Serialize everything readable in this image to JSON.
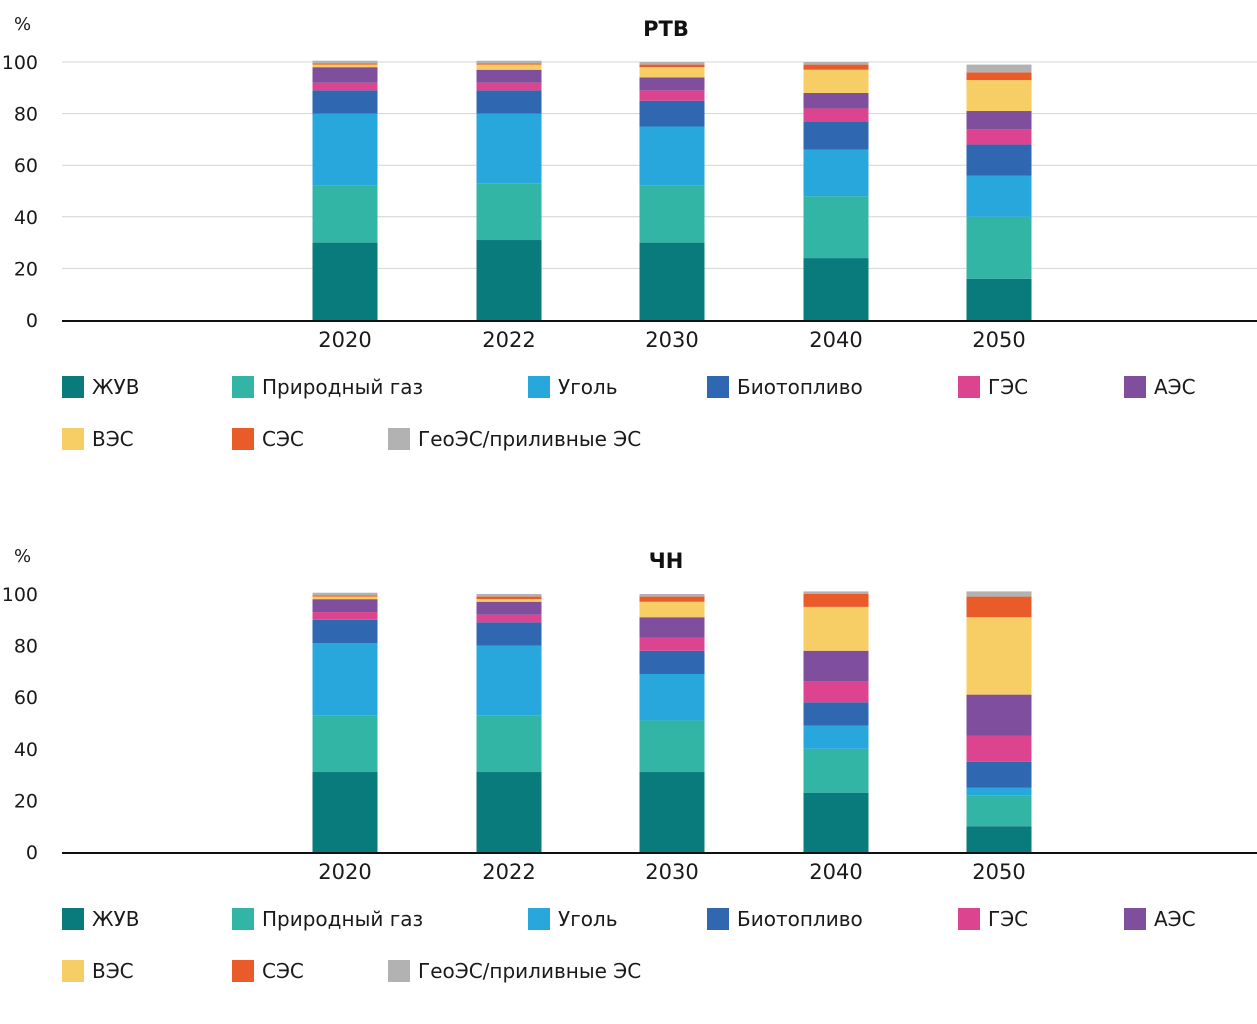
{
  "colors": {
    "ЖУВ": "#0a7b7c",
    "Природный газ": "#33b5a6",
    "Уголь": "#27a7db",
    "Биотопливо": "#2f68b1",
    "ГЭС": "#dd4490",
    "АЭС": "#7f4f9e",
    "ВЭС": "#f7cd66",
    "СЭС": "#ea5b2a",
    "ГеоЭС/приливные ЭС": "#b2b2b2"
  },
  "legend": [
    "ЖУВ",
    "Природный газ",
    "Уголь",
    "Биотопливо",
    "ГЭС",
    "АЭС",
    "ВЭС",
    "СЭС",
    "ГеоЭС/приливные ЭС"
  ],
  "chart_data": [
    {
      "type": "bar",
      "stacked": true,
      "title": "РТВ",
      "ylabel": "%",
      "ylim": [
        0,
        100
      ],
      "yticks": [
        0,
        20,
        40,
        60,
        80,
        100
      ],
      "grid": true,
      "categories": [
        "2020",
        "2022",
        "2030",
        "2040",
        "2050"
      ],
      "series": [
        {
          "name": "ЖУВ",
          "values": [
            30,
            31,
            30,
            24,
            16
          ]
        },
        {
          "name": "Природный газ",
          "values": [
            22,
            22,
            22,
            24,
            24
          ]
        },
        {
          "name": "Уголь",
          "values": [
            28,
            27,
            23,
            18,
            16
          ]
        },
        {
          "name": "Биотопливо",
          "values": [
            9,
            9,
            10,
            11,
            12
          ]
        },
        {
          "name": "ГЭС",
          "values": [
            3,
            3,
            4,
            5,
            6
          ]
        },
        {
          "name": "АЭС",
          "values": [
            6,
            5,
            5,
            6,
            7
          ]
        },
        {
          "name": "ВЭС",
          "values": [
            1,
            2,
            4,
            9,
            12
          ]
        },
        {
          "name": "СЭС",
          "values": [
            0.5,
            0.5,
            1,
            2,
            3
          ]
        },
        {
          "name": "ГеоЭС/приливные ЭС",
          "values": [
            1,
            1,
            1,
            1,
            3
          ]
        }
      ]
    },
    {
      "type": "bar",
      "stacked": true,
      "title": "ЧН",
      "ylabel": "%",
      "ylim": [
        0,
        100
      ],
      "yticks": [
        0,
        20,
        40,
        60,
        80,
        100
      ],
      "grid": false,
      "categories": [
        "2020",
        "2022",
        "2030",
        "2040",
        "2050"
      ],
      "series": [
        {
          "name": "ЖУВ",
          "values": [
            31,
            31,
            31,
            23,
            10
          ]
        },
        {
          "name": "Природный газ",
          "values": [
            22,
            22,
            20,
            17,
            12
          ]
        },
        {
          "name": "Уголь",
          "values": [
            28,
            27,
            18,
            9,
            3
          ]
        },
        {
          "name": "Биотопливо",
          "values": [
            9,
            9,
            9,
            9,
            10
          ]
        },
        {
          "name": "ГЭС",
          "values": [
            3,
            3,
            5,
            8,
            10
          ]
        },
        {
          "name": "АЭС",
          "values": [
            5,
            5,
            8,
            12,
            16
          ]
        },
        {
          "name": "ВЭС",
          "values": [
            1,
            1,
            6,
            17,
            30
          ]
        },
        {
          "name": "СЭС",
          "values": [
            0.5,
            1,
            2,
            5,
            8
          ]
        },
        {
          "name": "ГеоЭС/приливные ЭС",
          "values": [
            1,
            1,
            1,
            1,
            2
          ]
        }
      ]
    }
  ]
}
